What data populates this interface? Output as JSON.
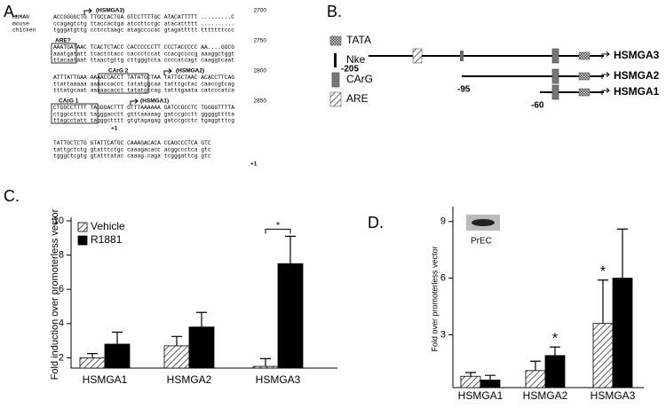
{
  "panel_a": {
    "label": "A.",
    "blocks": [
      {
        "annotations": [
          "(HSMGA3)"
        ],
        "position": 2700,
        "rows": [
          {
            "species": "HUMAN",
            "sequence": "ACCGGGGCTG TTGCCACTGA GTCCTTTTGC ATACATTTTT .........C"
          },
          {
            "species": "mouse",
            "sequence": "ccagagtctg ttaccactga atccttctgc atacattttt .........."
          },
          {
            "species": "chicken",
            "sequence": "tgggatgttg cctcctaagc atagccccac gtagattttt tttttttccc"
          }
        ]
      },
      {
        "annotations": [
          "ARE?"
        ],
        "position": 2750,
        "rows": [
          {
            "sequence": "AAATGATAAC TCACTCTACC CACCCCCCTT CCCTACCCCC AA....GGCG"
          },
          {
            "sequence": "aaatgatatt tcactctacc caccctccat ccacgccccg aaaggctggt"
          },
          {
            "sequence": "ttacaataat ttaactgttg cttgggtcta ccccatcagt caaggtcaat"
          }
        ]
      },
      {
        "annotations": [
          "CArG 2",
          "(HSMGA2)"
        ],
        "position": 2800,
        "rows": [
          {
            "sequence": "ATTTATTGAA AAAACCACCT TATATGCTAA TATTGCTAAC ACACCTTCAG"
          },
          {
            "sequence": "ttattaaaaa aaaaccacct tatatggcaa tatttgctac caaccgtcag"
          },
          {
            "sequence": "tttatgcaat aaaaacacct tatatgccag tatttgaata catcccatca"
          }
        ]
      },
      {
        "annotations": [
          "CArG 1",
          "(HSMGA1)"
        ],
        "position": 2850,
        "footer": "+1",
        "rows": [
          {
            "sequence": "CTGGCCTTTT TAGGGACTTT GTTTAAAAAA GATCCGCCTC TGGGGTTTTA"
          },
          {
            "sequence": "ctggcctttt tagggacctt gtttaaaaag gatccgcctt gggggtttta"
          },
          {
            "sequence": "ttagcctatt tagggctttt gtgtagagag gatccgcctc tgaggtttcg"
          }
        ]
      },
      {
        "annotations": [],
        "footer": "+1",
        "rows": [
          {
            "sequence": "TATTGCTCTG GTATTCATGC CAAAGACACA CCAGCCCTCA GTC"
          },
          {
            "sequence": "tattgctctg gtatttctgc caaagacacc acggccctca gtc"
          },
          {
            "sequence": "tgggctcgtg gtatttatac caaag.caga tcgggattcg gtc"
          }
        ]
      }
    ]
  },
  "panel_b": {
    "label": "B.",
    "legend": [
      "TATA",
      "Nke",
      "CArG",
      "ARE"
    ],
    "constructs": [
      {
        "name": "HSMGA3",
        "start": -205
      },
      {
        "name": "HSMGA2",
        "start": -95
      },
      {
        "name": "HSMGA1",
        "start": -60
      }
    ]
  },
  "chart_data": [
    {
      "type": "bar",
      "panel_label": "C.",
      "ylabel": "Fold induction over promoterless vector",
      "categories": [
        "HSMGA1",
        "HSMGA2",
        "HSMGA3"
      ],
      "series": [
        {
          "name": "Vehicle",
          "color": "#000000",
          "hatch": true,
          "values": [
            2.0,
            2.7,
            1.5
          ],
          "errors": [
            0.25,
            0.55,
            0.45
          ]
        },
        {
          "name": "R1881",
          "color": "#000000",
          "hatch": false,
          "values": [
            2.8,
            3.8,
            7.5
          ],
          "errors": [
            0.7,
            0.85,
            1.6
          ]
        }
      ],
      "ylim": [
        1.4,
        10
      ],
      "yticks": [
        2,
        4,
        6,
        8,
        10
      ],
      "significance": [
        {
          "text": "*",
          "category": 2,
          "bracket": true
        }
      ]
    },
    {
      "type": "bar",
      "panel_label": "D.",
      "ylabel": "Fold over promoterless vector",
      "categories": [
        "HSMGA1",
        "HSMGA2",
        "HSMGA3"
      ],
      "series": [
        {
          "color": "#000000",
          "hatch": true,
          "values": [
            0.8,
            1.1,
            3.6
          ],
          "errors": [
            0.2,
            0.5,
            2.3
          ]
        },
        {
          "color": "#000000",
          "hatch": false,
          "values": [
            0.6,
            1.9,
            6.0
          ],
          "errors": [
            0.25,
            0.45,
            2.6
          ]
        }
      ],
      "ylim": [
        0.2,
        9.6
      ],
      "yticks": [
        3,
        6,
        9
      ],
      "inset_label": "PrEC",
      "significance": [
        {
          "text": "*",
          "category": 1,
          "series": 1
        },
        {
          "text": "*",
          "category": 2,
          "series": 0
        }
      ]
    }
  ]
}
